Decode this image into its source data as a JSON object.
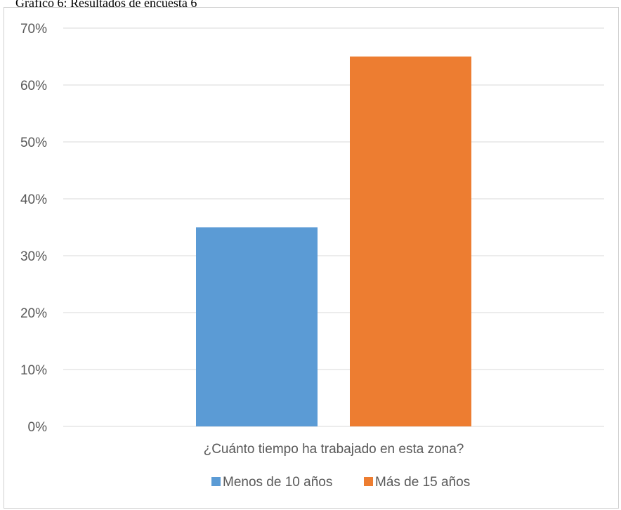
{
  "caption": "Gráfico 6: Resultados de encuesta 6",
  "chart_data": {
    "type": "bar",
    "title": "",
    "xlabel": "",
    "ylabel": "",
    "categories": [
      "¿Cuánto tiempo ha trabajado en esta zona?"
    ],
    "series": [
      {
        "name": "Menos de 10 años",
        "values": [
          35
        ],
        "color": "#5B9BD5"
      },
      {
        "name": "Más de 15 años",
        "values": [
          65
        ],
        "color": "#ED7D31"
      }
    ],
    "ylim": [
      0,
      70
    ],
    "yticks": [
      0,
      10,
      20,
      30,
      40,
      50,
      60,
      70
    ],
    "ytick_labels": [
      "0%",
      "10%",
      "20%",
      "30%",
      "40%",
      "50%",
      "60%",
      "70%"
    ],
    "grid": true,
    "legend_position": "bottom"
  }
}
